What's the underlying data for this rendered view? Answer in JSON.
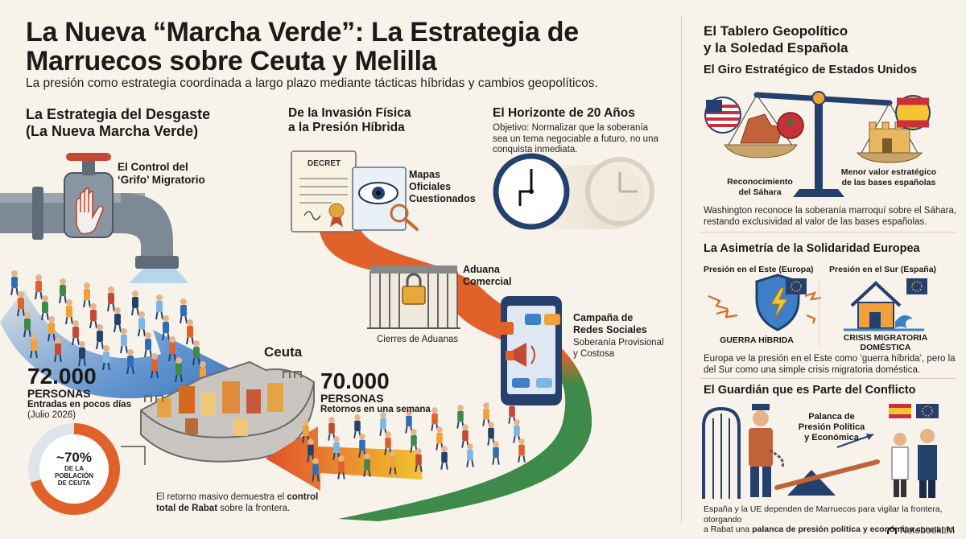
{
  "header": {
    "title_line1": "La Nueva “Marcha Verde”: La Estrategia de",
    "title_line2": "Marruecos sobre Ceuta y Melilla",
    "subtitle": "La presión como estrategia coordinada a largo plazo mediante tácticas híbridas y cambios geopolíticos."
  },
  "left": {
    "heading_line1": "La Estrategia del Desgaste",
    "heading_line2": "(La Nueva Marcha Verde)",
    "tap_label_line1": "El Control del",
    "tap_label_line2": "‘Grifo’ Migratorio",
    "ceuta_label": "Ceuta",
    "stat1_number": "72.000",
    "stat1_unit": "PERSONAS",
    "stat1_desc": "Entradas en pocos días",
    "stat1_date": "(Julio 2026)",
    "donut_value": "~70%",
    "donut_line1": "DE LA",
    "donut_line2": "POBLACIÓN",
    "donut_line3": "DE CEUTA",
    "stat2_number": "70.000",
    "stat2_unit": "PERSONAS",
    "stat2_desc": "Retornos en una semana",
    "note_pre": "El retorno masivo demuestra el ",
    "note_bold1": "control",
    "note_bold2": "total de Rabat",
    "note_post": " sobre la frontera."
  },
  "middle": {
    "heading_line1": "De la Invasión Física",
    "heading_line2": "a la Presión Híbrida",
    "decree_label": "DECRET",
    "maps_line1": "Mapas",
    "maps_line2": "Oficiales",
    "maps_line3": "Cuestionados",
    "customs_line1": "Aduana",
    "customs_line2": "Comercial",
    "customs_caption": "Cierres de Aduanas",
    "social_line1": "Campaña de",
    "social_line2": "Redes Sociales",
    "social_desc_line1": "Soberanía Provisional",
    "social_desc_line2": "y Costosa"
  },
  "horizon": {
    "heading": "El Horizonte de 20 Años",
    "desc_line1": "Objetivo: Normalizar que la soberanía",
    "desc_line2": "sea un tema negociable a futuro, no una",
    "desc_line3": "conquista inmediata."
  },
  "right": {
    "heading_line1": "El Tablero Geopolítico",
    "heading_line2": "y la Soledad Española",
    "us": {
      "heading": "El Giro Estratégico de Estados Unidos",
      "left_label_line1": "Reconocimiento",
      "left_label_line2": "del Sáhara",
      "right_label_line1": "Menor valor estratégico",
      "right_label_line2": "de las bases españolas",
      "desc_line1": "Washington reconoce la soberanía marroquí sobre el Sáhara,",
      "desc_line2": "restando exclusividad al valor de las bases españolas."
    },
    "eu": {
      "heading": "La Asimetría de la Solidaridad Europea",
      "east_label": "Presión en el Este (Europa)",
      "south_label": "Presión en el Sur (España)",
      "east_caption": "GUERRA HÍBRIDA",
      "south_caption_line1": "CRISIS MIGRATORIA",
      "south_caption_line2": "DOMÉSTICA",
      "desc_line1": "Europa ve la presión en el Este como ‘guerra híbrida’, pero la",
      "desc_line2": "del Sur como una simple crisis migratoria doméstica."
    },
    "guardian": {
      "heading": "El Guardián que es Parte del Conflicto",
      "lever_line1": "Palanca de",
      "lever_line2": "Presión Política",
      "lever_line3": "y Económica",
      "desc_line1": "España y la UE dependen de Marruecos para vigilar la frontera, otorgando",
      "desc_pre": "a Rabat una ",
      "desc_bold": "palanca de presión política y económica",
      "desc_post": " constante."
    }
  },
  "footer": {
    "brand": "NotebookLM"
  },
  "colors": {
    "blue_arrow": "#3f7fc8",
    "orange": "#e0612a",
    "green": "#3d8a4a",
    "navy": "#26406e"
  }
}
